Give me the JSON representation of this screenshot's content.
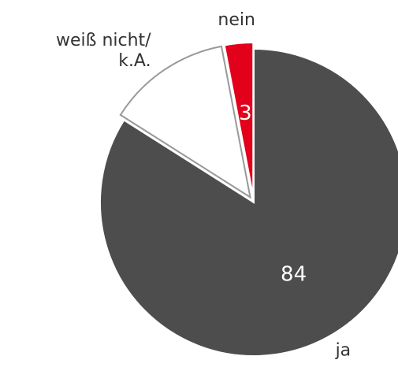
{
  "chart_data": {
    "type": "pie",
    "categories": [
      "ja",
      "weiß nicht/\nk.A.",
      "nein"
    ],
    "values": [
      84,
      13,
      3
    ],
    "colors": [
      "#4d4d4d",
      "#ffffff",
      "#e2001a"
    ],
    "data_labels_shown": [
      true,
      false,
      true
    ],
    "start_angle": 0,
    "direction": "clockwise"
  }
}
